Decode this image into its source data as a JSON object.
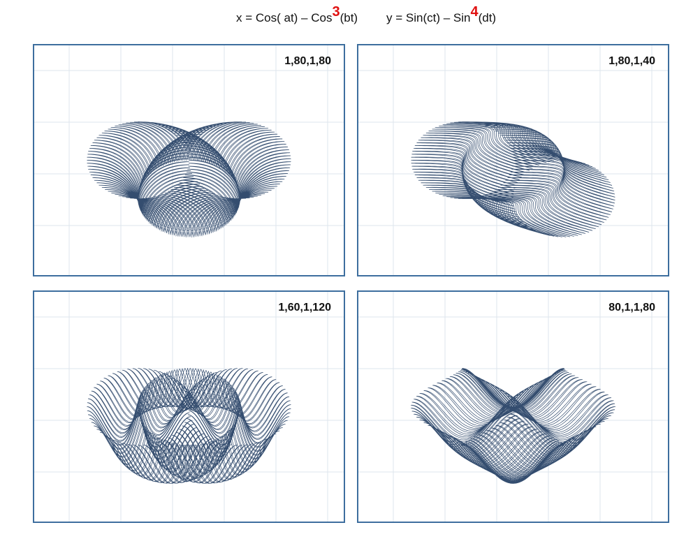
{
  "title": {
    "x_eq_pre": "x = Cos( at) – Cos",
    "x_exp": "3",
    "x_eq_post": "(bt)",
    "y_eq_pre": "y = Sin(ct) – Sin",
    "y_exp": "4",
    "y_eq_post": "(dt)"
  },
  "colors": {
    "curve": "#1e3a5f",
    "frame": "#3d6e9e",
    "grid": "#dde4ec",
    "exponent": "#e01010"
  },
  "chart_data": [
    {
      "type": "line",
      "label": "1,80,1,80",
      "params": [
        1,
        80,
        1,
        80
      ],
      "x_exp": 3,
      "y_exp": 4,
      "xlim": [
        -2,
        2
      ],
      "ylim": [
        -2,
        2
      ]
    },
    {
      "type": "line",
      "label": "1,80,1,40",
      "params": [
        1,
        80,
        1,
        40
      ],
      "x_exp": 3,
      "y_exp": 4,
      "xlim": [
        -2,
        2
      ],
      "ylim": [
        -2,
        2
      ]
    },
    {
      "type": "line",
      "label": "1,60,1,120",
      "params": [
        1,
        60,
        1,
        120
      ],
      "x_exp": 3,
      "y_exp": 4,
      "xlim": [
        -2,
        2
      ],
      "ylim": [
        -2,
        2
      ]
    },
    {
      "type": "line",
      "label": "80,1,1,80",
      "params": [
        80,
        1,
        1,
        80
      ],
      "x_exp": 3,
      "y_exp": 4,
      "xlim": [
        -2,
        2
      ],
      "ylim": [
        -2,
        2
      ]
    }
  ]
}
